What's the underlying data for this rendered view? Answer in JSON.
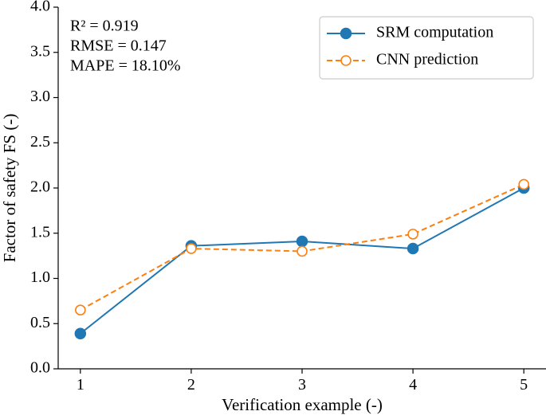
{
  "chart_data": {
    "type": "line",
    "title": "",
    "xlabel": "Verification example (-)",
    "ylabel": "Factor of safety FS (-)",
    "x": [
      1,
      2,
      3,
      4,
      5
    ],
    "x_tick_labels": [
      "1",
      "2",
      "3",
      "4",
      "5"
    ],
    "xlim": [
      0.8,
      5.2
    ],
    "ylim": [
      0.0,
      4.0
    ],
    "y_tick_labels": [
      "0.0",
      "0.5",
      "1.0",
      "1.5",
      "2.0",
      "2.5",
      "3.0",
      "3.5",
      "4.0"
    ],
    "series": [
      {
        "name": "SRM computation",
        "values": [
          0.39,
          1.36,
          1.41,
          1.33,
          2.0
        ],
        "color": "#1f77b4",
        "line_style": "solid",
        "marker": "filled-circle"
      },
      {
        "name": "CNN prediction",
        "values": [
          0.65,
          1.33,
          1.3,
          1.49,
          2.04
        ],
        "color": "#ff7f0e",
        "line_style": "dashed",
        "marker": "open-circle"
      }
    ],
    "annotations": [
      "R² = 0.919",
      "RMSE = 0.147",
      "MAPE = 18.10%"
    ],
    "legend_position": "top-right",
    "grid": false
  }
}
